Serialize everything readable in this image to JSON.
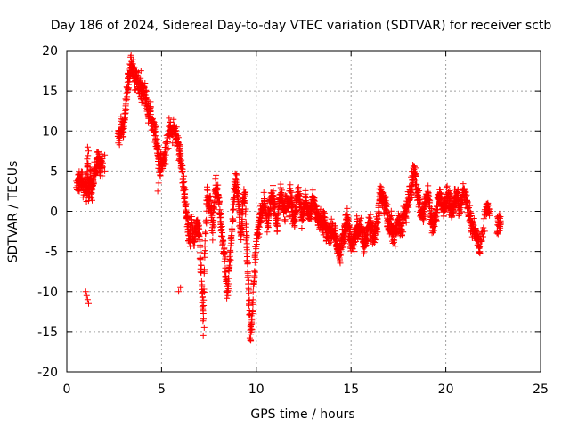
{
  "chart_data": {
    "type": "scatter",
    "title": "Day 186 of 2024, Sidereal Day-to-day VTEC variation (SDTVAR) for receiver sctb",
    "xlabel": "GPS time / hours",
    "ylabel": "SDTVAR / TECUs",
    "xlim": [
      0,
      25
    ],
    "ylim": [
      -20,
      20
    ],
    "xticks": [
      0,
      5,
      10,
      15,
      20,
      25
    ],
    "yticks": [
      -20,
      -15,
      -10,
      -5,
      0,
      5,
      10,
      15,
      20
    ],
    "xtick_labels": [
      "0",
      "5",
      "10",
      "15",
      "20",
      "25"
    ],
    "ytick_labels": [
      "-20",
      "-15",
      "-10",
      "-5",
      "0",
      "5",
      "10",
      "15",
      "20"
    ],
    "grid": true,
    "marker": "+",
    "color": "#ff0000",
    "series": [
      {
        "name": "sctb",
        "trace": [
          [
            0.5,
            3.0
          ],
          [
            0.6,
            3.2
          ],
          [
            0.7,
            3.8
          ],
          [
            0.8,
            3.5
          ],
          [
            0.9,
            3.0
          ],
          [
            1.0,
            3.5
          ],
          [
            1.05,
            2.5
          ],
          [
            1.1,
            6.0
          ],
          [
            1.15,
            2.0
          ],
          [
            1.2,
            3.0
          ],
          [
            1.25,
            4.0
          ],
          [
            1.3,
            2.5
          ],
          [
            1.4,
            3.5
          ],
          [
            1.5,
            5.0
          ],
          [
            1.6,
            5.8
          ],
          [
            1.7,
            6.5
          ],
          [
            1.8,
            5.5
          ],
          [
            1.9,
            6.0
          ],
          [
            2.7,
            10.0
          ],
          [
            2.8,
            9.5
          ],
          [
            2.9,
            11.0
          ],
          [
            3.0,
            10.5
          ],
          [
            3.1,
            13.0
          ],
          [
            3.2,
            15.5
          ],
          [
            3.3,
            17.0
          ],
          [
            3.4,
            18.0
          ],
          [
            3.5,
            17.5
          ],
          [
            3.6,
            16.5
          ],
          [
            3.7,
            17.0
          ],
          [
            3.8,
            15.0
          ],
          [
            3.9,
            16.0
          ],
          [
            4.0,
            14.5
          ],
          [
            4.1,
            15.5
          ],
          [
            4.2,
            13.5
          ],
          [
            4.3,
            12.0
          ],
          [
            4.4,
            13.0
          ],
          [
            4.5,
            11.0
          ],
          [
            4.6,
            10.5
          ],
          [
            4.7,
            9.0
          ],
          [
            4.8,
            7.0
          ],
          [
            4.9,
            6.0
          ],
          [
            5.0,
            5.5
          ],
          [
            5.1,
            6.5
          ],
          [
            5.2,
            7.0
          ],
          [
            5.4,
            10.0
          ],
          [
            5.5,
            10.3
          ],
          [
            5.6,
            10.0
          ],
          [
            5.7,
            9.8
          ],
          [
            5.8,
            9.0
          ],
          [
            5.9,
            8.0
          ],
          [
            6.0,
            7.0
          ],
          [
            6.1,
            5.0
          ],
          [
            6.2,
            2.0
          ],
          [
            6.3,
            0.0
          ],
          [
            6.4,
            -2.0
          ],
          [
            6.5,
            -3.5
          ],
          [
            6.6,
            -1.0
          ],
          [
            6.7,
            -4.0
          ],
          [
            6.8,
            -2.5
          ],
          [
            6.9,
            -1.5
          ],
          [
            7.0,
            -3.0
          ],
          [
            7.1,
            -8.0
          ],
          [
            7.2,
            -13.0
          ],
          [
            7.3,
            -4.0
          ],
          [
            7.4,
            2.0
          ],
          [
            7.5,
            1.0
          ],
          [
            7.6,
            0.5
          ],
          [
            7.7,
            -2.0
          ],
          [
            7.8,
            2.0
          ],
          [
            7.9,
            3.0
          ],
          [
            8.0,
            1.5
          ],
          [
            8.1,
            -1.0
          ],
          [
            8.2,
            -3.0
          ],
          [
            8.3,
            -5.0
          ],
          [
            8.4,
            -9.0
          ],
          [
            8.5,
            -10.0
          ],
          [
            8.6,
            -6.0
          ],
          [
            8.7,
            -3.0
          ],
          [
            8.8,
            1.0
          ],
          [
            8.9,
            3.5
          ],
          [
            9.0,
            3.0
          ],
          [
            9.1,
            0.0
          ],
          [
            9.2,
            -3.0
          ],
          [
            9.3,
            1.0
          ],
          [
            9.4,
            2.0
          ],
          [
            9.5,
            -5.0
          ],
          [
            9.6,
            -10.0
          ],
          [
            9.7,
            -15.5
          ],
          [
            9.8,
            -12.0
          ],
          [
            9.9,
            -8.0
          ],
          [
            10.0,
            -4.0
          ],
          [
            10.1,
            -2.0
          ],
          [
            10.2,
            -1.0
          ],
          [
            10.3,
            0.0
          ],
          [
            10.4,
            1.0
          ],
          [
            10.5,
            0.5
          ],
          [
            10.6,
            -1.5
          ],
          [
            10.7,
            0.5
          ],
          [
            10.8,
            2.0
          ],
          [
            10.9,
            1.5
          ],
          [
            11.0,
            0.0
          ],
          [
            11.1,
            -2.0
          ],
          [
            11.2,
            1.0
          ],
          [
            11.3,
            2.5
          ],
          [
            11.4,
            1.0
          ],
          [
            11.5,
            -0.5
          ],
          [
            11.6,
            1.5
          ],
          [
            11.7,
            0.5
          ],
          [
            11.8,
            2.0
          ],
          [
            11.9,
            0.0
          ],
          [
            12.0,
            -1.0
          ],
          [
            12.1,
            0.5
          ],
          [
            12.2,
            2.5
          ],
          [
            12.3,
            1.0
          ],
          [
            12.4,
            -1.0
          ],
          [
            12.5,
            0.5
          ],
          [
            12.6,
            1.5
          ],
          [
            12.7,
            0.0
          ],
          [
            12.8,
            -1.0
          ],
          [
            12.9,
            0.5
          ],
          [
            13.0,
            1.5
          ],
          [
            13.1,
            0.5
          ],
          [
            13.2,
            -0.5
          ],
          [
            13.3,
            -1.5
          ],
          [
            13.4,
            -1.0
          ],
          [
            13.5,
            -2.0
          ],
          [
            13.6,
            -1.0
          ],
          [
            13.7,
            -2.5
          ],
          [
            13.8,
            -3.0
          ],
          [
            13.9,
            -2.0
          ],
          [
            14.0,
            -3.0
          ],
          [
            14.1,
            -2.5
          ],
          [
            14.2,
            -3.5
          ],
          [
            14.3,
            -4.5
          ],
          [
            14.4,
            -5.5
          ],
          [
            14.5,
            -4.0
          ],
          [
            14.6,
            -3.0
          ],
          [
            14.7,
            -2.0
          ],
          [
            14.8,
            -1.0
          ],
          [
            14.9,
            -2.5
          ],
          [
            15.0,
            -3.5
          ],
          [
            15.1,
            -4.0
          ],
          [
            15.2,
            -3.0
          ],
          [
            15.3,
            -2.0
          ],
          [
            15.4,
            -2.5
          ],
          [
            15.5,
            -1.5
          ],
          [
            15.6,
            -3.0
          ],
          [
            15.7,
            -4.0
          ],
          [
            15.8,
            -3.0
          ],
          [
            15.9,
            -2.0
          ],
          [
            16.0,
            -1.5
          ],
          [
            16.1,
            -2.5
          ],
          [
            16.2,
            -3.0
          ],
          [
            16.3,
            -2.0
          ],
          [
            16.4,
            -1.5
          ],
          [
            16.5,
            1.5
          ],
          [
            16.6,
            2.0
          ],
          [
            16.7,
            1.5
          ],
          [
            16.8,
            1.0
          ],
          [
            16.9,
            -0.5
          ],
          [
            17.0,
            -2.0
          ],
          [
            17.1,
            -1.0
          ],
          [
            17.2,
            -2.5
          ],
          [
            17.3,
            -3.0
          ],
          [
            17.4,
            -2.0
          ],
          [
            17.5,
            -1.0
          ],
          [
            17.6,
            -2.5
          ],
          [
            17.7,
            -1.5
          ],
          [
            17.8,
            -0.5
          ],
          [
            17.9,
            0.0
          ],
          [
            18.0,
            1.0
          ],
          [
            18.1,
            2.0
          ],
          [
            18.2,
            3.0
          ],
          [
            18.3,
            5.5
          ],
          [
            18.4,
            4.0
          ],
          [
            18.5,
            2.0
          ],
          [
            18.6,
            1.0
          ],
          [
            18.7,
            0.0
          ],
          [
            18.8,
            -0.5
          ],
          [
            18.9,
            1.0
          ],
          [
            19.0,
            2.0
          ],
          [
            19.1,
            1.5
          ],
          [
            19.2,
            -0.5
          ],
          [
            19.3,
            -1.5
          ],
          [
            19.4,
            -1.0
          ],
          [
            19.5,
            0.0
          ],
          [
            19.6,
            1.5
          ],
          [
            19.7,
            2.0
          ],
          [
            19.8,
            1.0
          ],
          [
            19.9,
            0.0
          ],
          [
            20.0,
            1.0
          ],
          [
            20.1,
            2.0
          ],
          [
            20.2,
            1.0
          ],
          [
            20.3,
            0.0
          ],
          [
            20.4,
            0.5
          ],
          [
            20.5,
            1.5
          ],
          [
            20.6,
            2.0
          ],
          [
            20.7,
            0.0
          ],
          [
            20.8,
            1.0
          ],
          [
            20.9,
            2.5
          ],
          [
            21.0,
            2.0
          ],
          [
            21.1,
            1.0
          ],
          [
            21.2,
            0.0
          ],
          [
            21.3,
            -1.0
          ],
          [
            21.4,
            -2.0
          ],
          [
            21.5,
            -2.5
          ],
          [
            21.6,
            -3.0
          ],
          [
            21.7,
            -4.0
          ],
          [
            21.8,
            -4.5
          ],
          [
            22.1,
            0.0
          ],
          [
            22.2,
            0.5
          ],
          [
            22.3,
            0.0
          ],
          [
            22.7,
            -2.0
          ],
          [
            22.8,
            -1.0
          ],
          [
            22.9,
            -1.5
          ]
        ],
        "isolated": [
          [
            1.0,
            -10.0
          ],
          [
            1.05,
            -10.5
          ],
          [
            1.1,
            -11.0
          ],
          [
            1.15,
            -11.5
          ],
          [
            1.1,
            8.0
          ],
          [
            1.15,
            7.5
          ],
          [
            0.6,
            4.5
          ],
          [
            4.8,
            2.5
          ],
          [
            4.85,
            3.5
          ],
          [
            6.0,
            -9.5
          ],
          [
            5.9,
            -10.0
          ],
          [
            7.2,
            -15.5
          ],
          [
            7.25,
            -14.5
          ],
          [
            8.5,
            -10.5
          ],
          [
            9.7,
            -16.0
          ],
          [
            9.65,
            -15.8
          ],
          [
            2.0,
            7.0
          ],
          [
            2.0,
            5.0
          ]
        ]
      }
    ]
  }
}
